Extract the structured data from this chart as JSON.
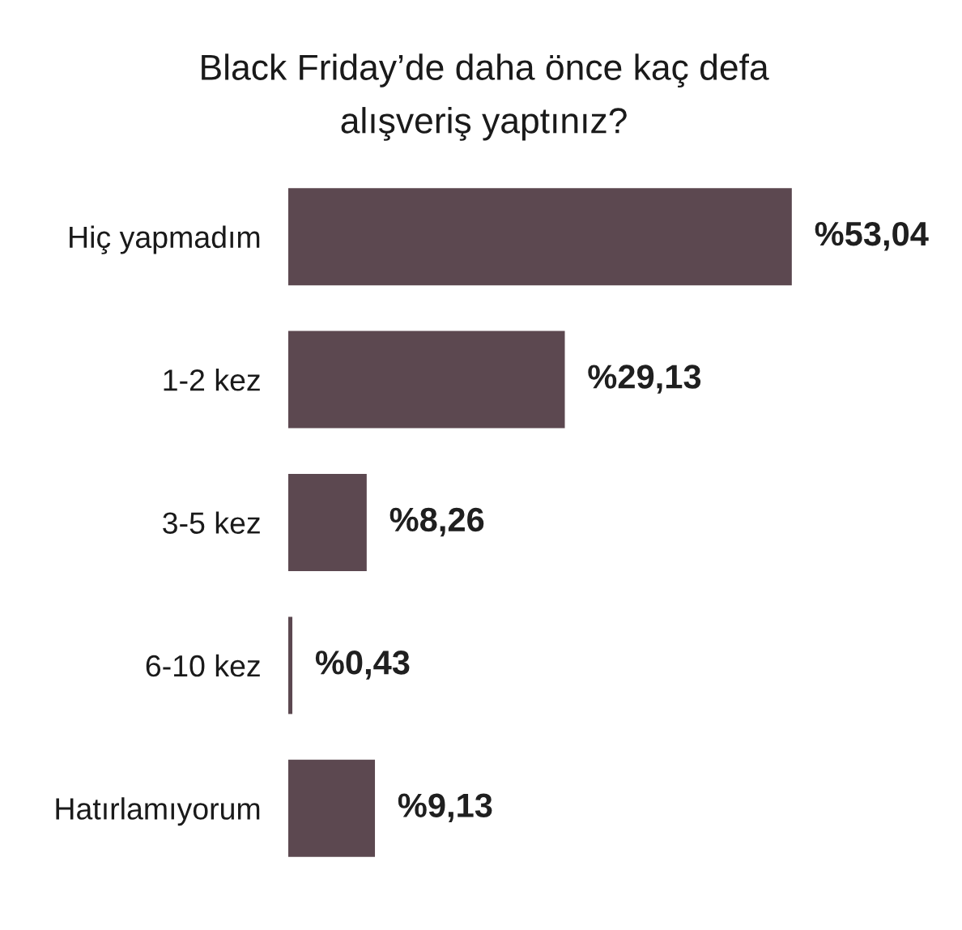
{
  "chart_data": {
    "type": "bar",
    "orientation": "horizontal",
    "title": "Black Friday’de daha önce kaç defa\nalışveriş yaptınız?",
    "categories": [
      "Hiç yapmadım",
      "1-2 kez",
      "3-5 kez",
      "6-10 kez",
      "Hatırlamıyorum"
    ],
    "values": [
      53.04,
      29.13,
      8.26,
      0.43,
      9.13
    ],
    "color": "#5c4850",
    "value_labels": [
      "%53,04",
      "%29,13",
      "%8,26",
      "%0,43",
      "%9,13"
    ],
    "tick_labels": "y",
    "grid": false
  }
}
